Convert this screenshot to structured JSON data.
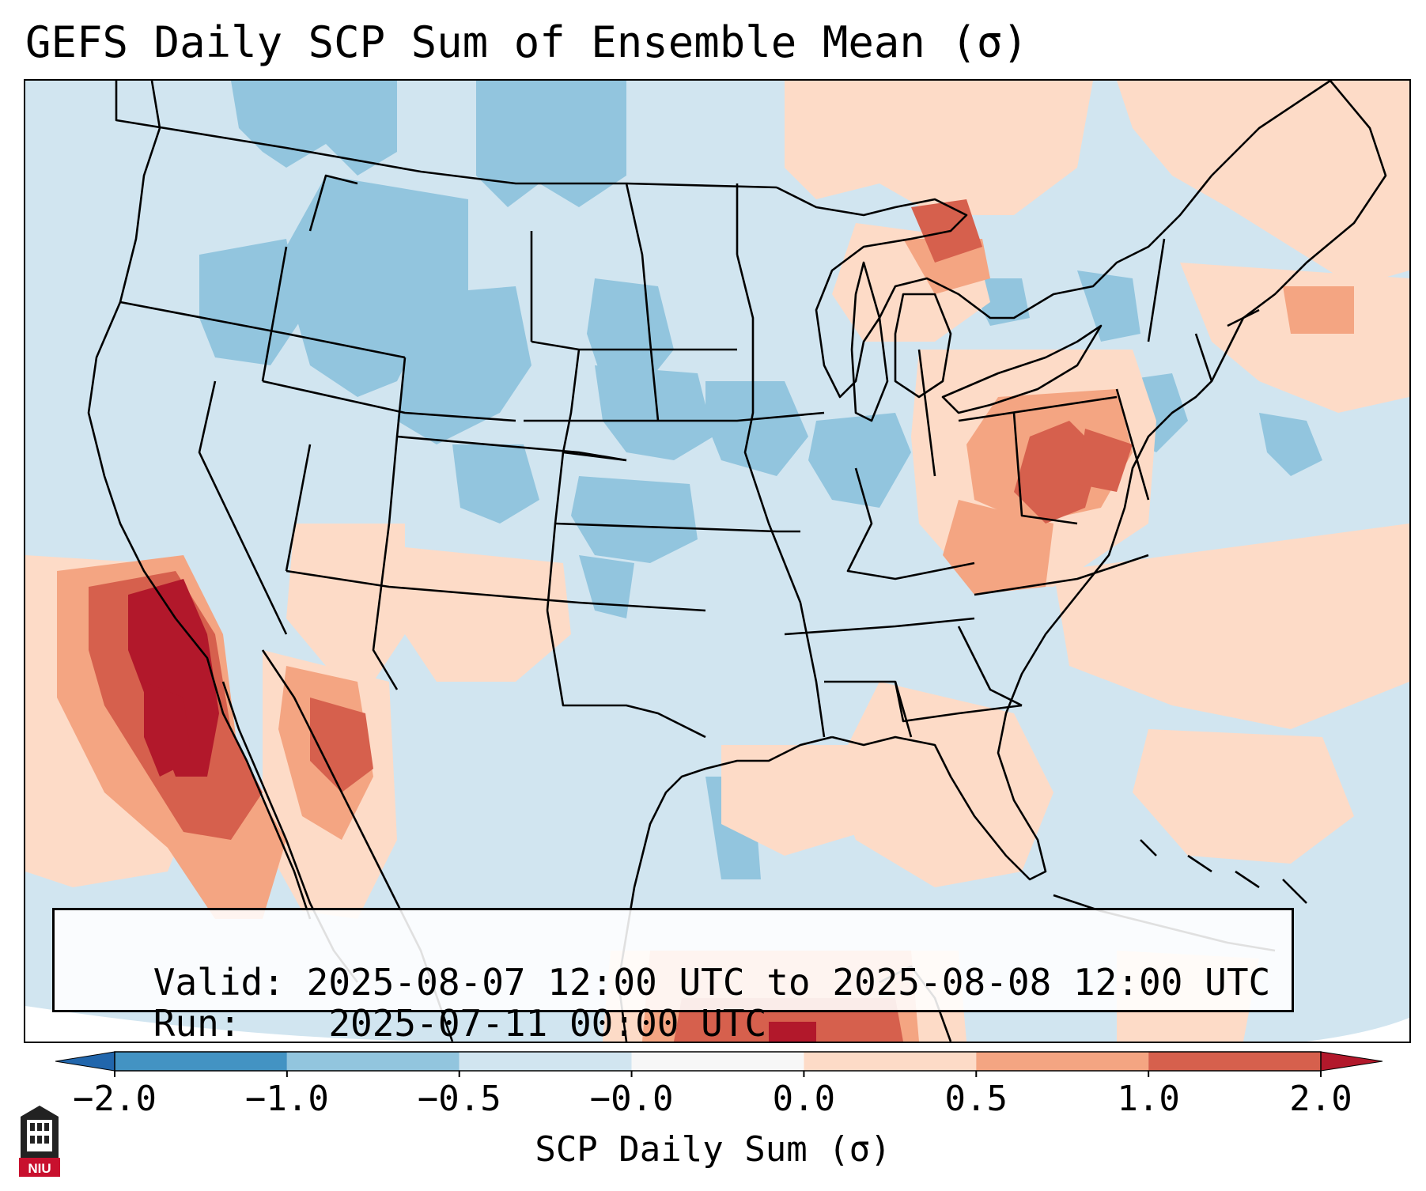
{
  "title": "GEFS Daily SCP Sum of Ensemble Mean (σ)",
  "info": {
    "valid_label": "Valid:",
    "valid_value": "2025-08-07 12:00 UTC to 2025-08-08 12:00 UTC",
    "run_label": "Run:",
    "run_value": "2025-07-11 00:00 UTC"
  },
  "colorbar": {
    "label": "SCP Daily Sum (σ)",
    "ticks": [
      "−2.0",
      "−1.0",
      "−0.5",
      "−0.0",
      "0.0",
      "0.5",
      "1.0",
      "2.0"
    ],
    "bins": [
      {
        "color": "#4393c3"
      },
      {
        "color": "#92c5de"
      },
      {
        "color": "#d1e5f0"
      },
      {
        "color": "#f7f7f7"
      },
      {
        "color": "#fddbc7"
      },
      {
        "color": "#f4a582"
      },
      {
        "color": "#d6604d"
      }
    ],
    "extend_low_color": "#2166ac",
    "extend_high_color": "#b2182b"
  },
  "colors": {
    "background": "#d1e5f0",
    "light_blue": "#92c5de",
    "light_red": "#fddbc7",
    "mid_red": "#f4a582",
    "red": "#d6604d",
    "dark_red": "#b2182b"
  },
  "logo": {
    "text": "NIU",
    "icon": "niu-logo-icon"
  }
}
